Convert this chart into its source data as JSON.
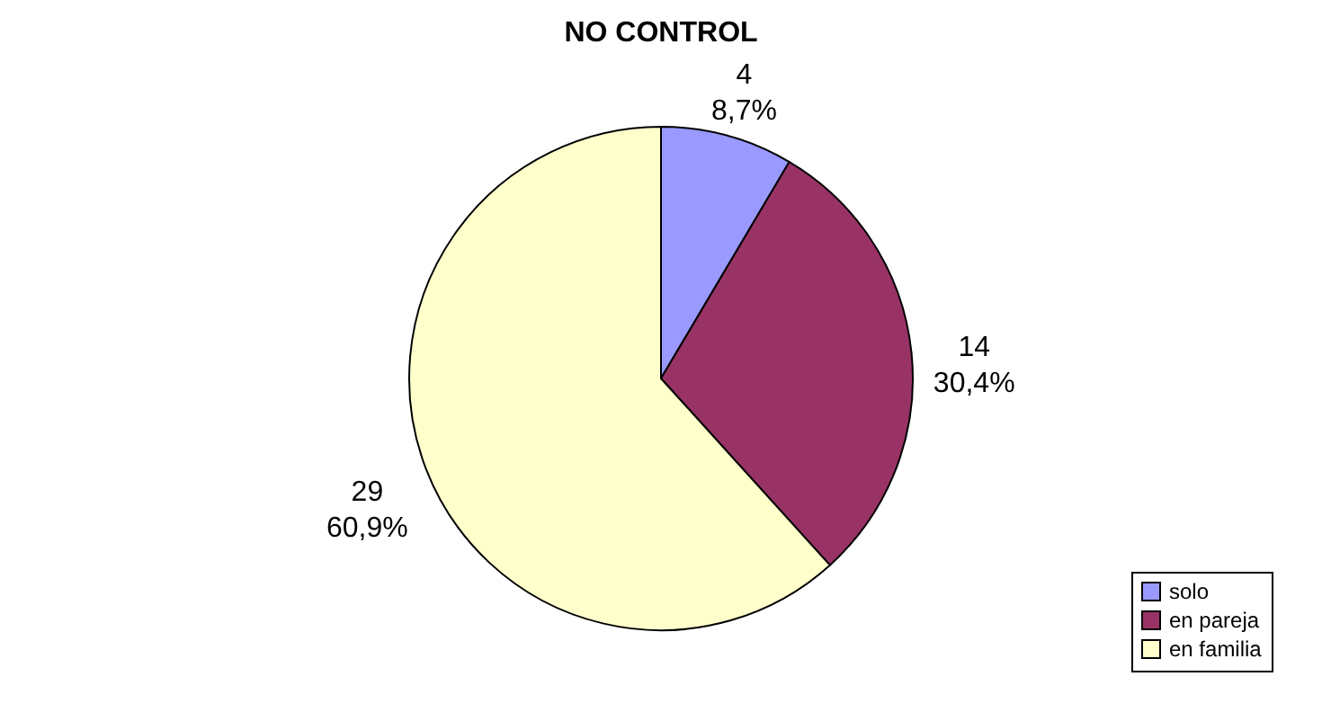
{
  "chart_data": {
    "type": "pie",
    "title": "NO CONTROL",
    "categories": [
      "solo",
      "en pareja",
      "en familia"
    ],
    "values": [
      4,
      14,
      29
    ],
    "colors": [
      "#9999ff",
      "#993366",
      "#ffffcc"
    ],
    "value_labels": [
      "4\n8,7%",
      "14\n30,4%",
      "29\n60,9%"
    ],
    "legend": "bottom right"
  }
}
